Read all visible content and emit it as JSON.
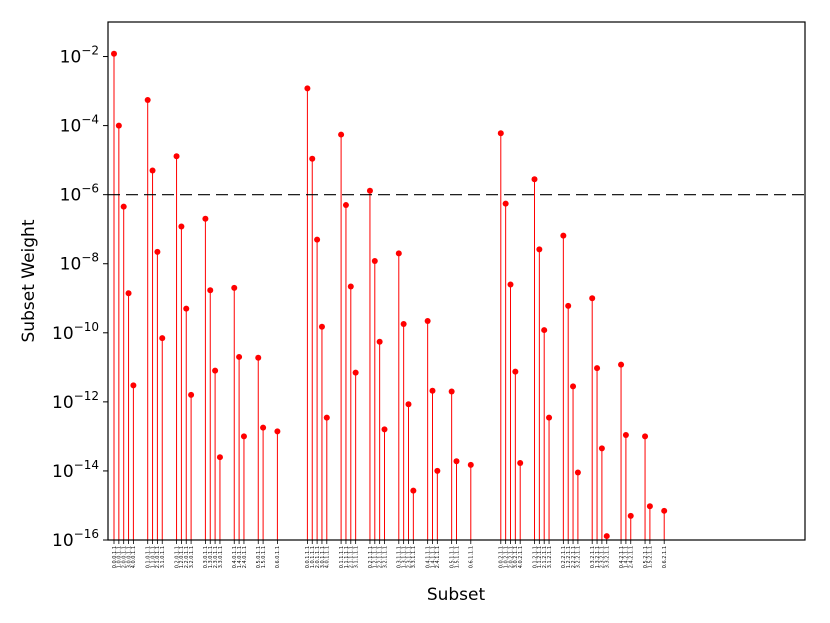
{
  "chart_data": {
    "type": "stem",
    "xlabel": "Subset",
    "ylabel": "Subset Weight",
    "yscale": "log",
    "ylim": [
      1e-16,
      0.1
    ],
    "yticks": [
      {
        "value": 1e-16,
        "base": "10",
        "exp": "−16"
      },
      {
        "value": 1e-14,
        "base": "10",
        "exp": "−14"
      },
      {
        "value": 1e-12,
        "base": "10",
        "exp": "−12"
      },
      {
        "value": 1e-10,
        "base": "10",
        "exp": "−10"
      },
      {
        "value": 1e-08,
        "base": "10",
        "exp": "−8"
      },
      {
        "value": 1e-06,
        "base": "10",
        "exp": "−6"
      },
      {
        "value": 0.0001,
        "base": "10",
        "exp": "−4"
      },
      {
        "value": 0.01,
        "base": "10",
        "exp": "−2"
      }
    ],
    "threshold": 1e-06,
    "threshold_style": "dashed",
    "stem_color": "#ff0000",
    "threshold_color": "#000000",
    "points": [
      {
        "label": "0.0.0.1.1",
        "value": 0.012
      },
      {
        "label": "1.0.0.1.1",
        "value": 0.0001
      },
      {
        "label": "2.0.0.1.1",
        "value": 4.5e-07
      },
      {
        "label": "3.0.0.1.1",
        "value": 1.4e-09
      },
      {
        "label": "4.0.0.1.1",
        "value": 3e-12
      },
      {
        "label": "0.1.0.1.1",
        "value": 0.00055
      },
      {
        "label": "1.1.0.1.1",
        "value": 5e-06
      },
      {
        "label": "2.1.0.1.1",
        "value": 2.2e-08
      },
      {
        "label": "3.1.0.1.1",
        "value": 7e-11
      },
      {
        "label": "0.2.0.1.1",
        "value": 1.3e-05
      },
      {
        "label": "1.2.0.1.1",
        "value": 1.2e-07
      },
      {
        "label": "2.2.0.1.1",
        "value": 5e-10
      },
      {
        "label": "3.2.0.1.1",
        "value": 1.6e-12
      },
      {
        "label": "0.3.0.1.1",
        "value": 2e-07
      },
      {
        "label": "1.3.0.1.1",
        "value": 1.7e-09
      },
      {
        "label": "2.3.0.1.1",
        "value": 8e-12
      },
      {
        "label": "3.3.0.1.1",
        "value": 2.5e-14
      },
      {
        "label": "0.4.0.1.1",
        "value": 2e-09
      },
      {
        "label": "1.4.0.1.1",
        "value": 2e-11
      },
      {
        "label": "2.4.0.1.1",
        "value": 1e-13
      },
      {
        "label": "0.5.0.1.1",
        "value": 1.9e-11
      },
      {
        "label": "1.5.0.1.1",
        "value": 1.8e-13
      },
      {
        "label": "0.6.0.1.1",
        "value": 1.4e-13
      },
      {
        "label": "0.0.1.1.1",
        "value": 0.0012
      },
      {
        "label": "1.0.1.1.1",
        "value": 1.1e-05
      },
      {
        "label": "2.0.1.1.1",
        "value": 5e-08
      },
      {
        "label": "3.0.1.1.1",
        "value": 1.5e-10
      },
      {
        "label": "4.0.1.1.1",
        "value": 3.5e-13
      },
      {
        "label": "0.1.1.1.1",
        "value": 5.5e-05
      },
      {
        "label": "1.1.1.1.1",
        "value": 5e-07
      },
      {
        "label": "2.1.1.1.1",
        "value": 2.2e-09
      },
      {
        "label": "3.1.1.1.1",
        "value": 7e-12
      },
      {
        "label": "0.2.1.1.1",
        "value": 1.3e-06
      },
      {
        "label": "1.2.1.1.1",
        "value": 1.2e-08
      },
      {
        "label": "2.2.1.1.1",
        "value": 5.5e-11
      },
      {
        "label": "3.2.1.1.1",
        "value": 1.6e-13
      },
      {
        "label": "0.3.1.1.1",
        "value": 2e-08
      },
      {
        "label": "1.3.1.1.1",
        "value": 1.8e-10
      },
      {
        "label": "2.3.1.1.1",
        "value": 8.5e-13
      },
      {
        "label": "3.3.1.1.1",
        "value": 2.7e-15
      },
      {
        "label": "0.4.1.1.1",
        "value": 2.2e-10
      },
      {
        "label": "1.4.1.1.1",
        "value": 2.1e-12
      },
      {
        "label": "2.4.1.1.1",
        "value": 1e-14
      },
      {
        "label": "0.5.1.1.1",
        "value": 2e-12
      },
      {
        "label": "1.5.1.1.1",
        "value": 1.9e-14
      },
      {
        "label": "0.6.1.1.1",
        "value": 1.5e-14
      },
      {
        "label": "0.0.2.1.1",
        "value": 6e-05
      },
      {
        "label": "1.0.2.1.1",
        "value": 5.5e-07
      },
      {
        "label": "2.0.2.1.1",
        "value": 2.5e-09
      },
      {
        "label": "3.0.2.1.1",
        "value": 7.5e-12
      },
      {
        "label": "4.0.2.1.1",
        "value": 1.7e-14
      },
      {
        "label": "0.1.2.1.1",
        "value": 2.8e-06
      },
      {
        "label": "1.1.2.1.1",
        "value": 2.6e-08
      },
      {
        "label": "2.1.2.1.1",
        "value": 1.2e-10
      },
      {
        "label": "3.1.2.1.1",
        "value": 3.5e-13
      },
      {
        "label": "0.2.2.1.1",
        "value": 6.5e-08
      },
      {
        "label": "1.2.2.1.1",
        "value": 6e-10
      },
      {
        "label": "2.2.2.1.1",
        "value": 2.8e-12
      },
      {
        "label": "3.2.2.1.1",
        "value": 9e-15
      },
      {
        "label": "0.3.2.1.1",
        "value": 1e-09
      },
      {
        "label": "1.3.2.1.1",
        "value": 9.5e-12
      },
      {
        "label": "2.3.2.1.1",
        "value": 4.5e-14
      },
      {
        "label": "3.3.2.1.1",
        "value": 1.3e-16
      },
      {
        "label": "0.4.2.1.1",
        "value": 1.2e-11
      },
      {
        "label": "1.4.2.1.1",
        "value": 1.1e-13
      },
      {
        "label": "2.4.2.1.1",
        "value": 5e-16
      },
      {
        "label": "0.5.2.1.1",
        "value": 1e-13
      },
      {
        "label": "1.5.2.1.1",
        "value": 9.5e-16
      },
      {
        "label": "0.6.2.1.1",
        "value": 7e-16
      }
    ]
  }
}
